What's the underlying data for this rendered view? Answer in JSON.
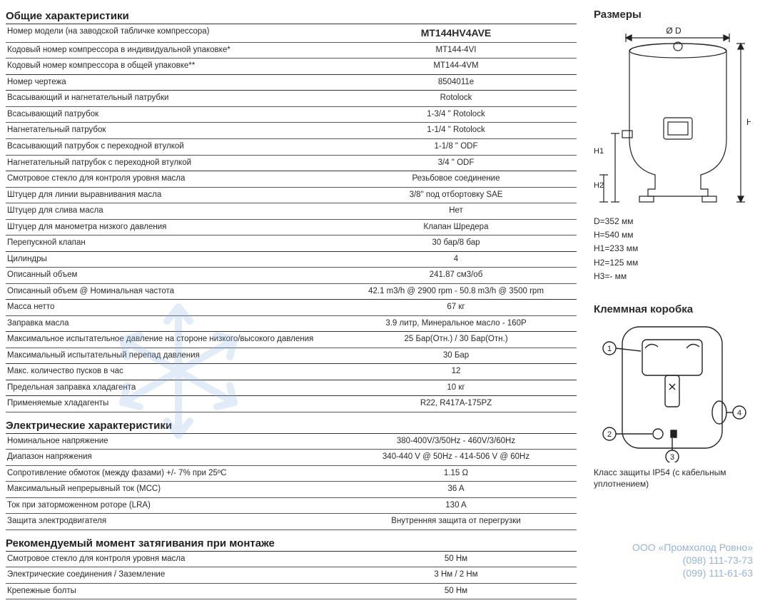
{
  "sections": {
    "general": {
      "title": "Общие характеристики",
      "rows": [
        {
          "label": "Номер модели (на заводской табличке компрессора)",
          "value": "MT144HV4AVE",
          "bold": true,
          "group": true
        },
        {
          "label": "Кодовый номер компрессора в индивидуальной упаковке*",
          "value": "MT144-4VI"
        },
        {
          "label": "Кодовый номер компрессора в общей упаковке**",
          "value": "MT144-4VM"
        },
        {
          "label": "Номер чертежа",
          "value": "8504011e",
          "group": true
        },
        {
          "label": "Всасывающий и нагнетательный патрубки",
          "value": "Rotolock",
          "group": true
        },
        {
          "label": "Всасывающий патрубок",
          "value": "1-3/4 \" Rotolock"
        },
        {
          "label": "Нагнетательный патрубок",
          "value": "1-1/4 \" Rotolock"
        },
        {
          "label": "Всасывающий патрубок с переходной втулкой",
          "value": "1-1/8 \" ODF"
        },
        {
          "label": "Нагнетательный патрубок с переходной втулкой",
          "value": "3/4 \" ODF"
        },
        {
          "label": "Смотровое стекло для контроля уровня масла",
          "value": "Резьбовое соединение",
          "group": true
        },
        {
          "label": "Штуцер для линии выравнивания масла",
          "value": "3/8\" под отбортовку SAE"
        },
        {
          "label": "Штуцер для слива масла",
          "value": "Нет"
        },
        {
          "label": "Штуцер для манометра низкого давления",
          "value": "Клапан Шредера"
        },
        {
          "label": "Перепускной клапан",
          "value": "30 бар/8 бар"
        },
        {
          "label": "Цилиндры",
          "value": "4",
          "group": true
        },
        {
          "label": "Описанный объем",
          "value": "241.87 см3/об"
        },
        {
          "label": "Описанный объем @ Номинальная частота",
          "value": "42.1 m3/h @ 2900 rpm - 50.8 m3/h @ 3500 rpm"
        },
        {
          "label": "Масса нетто",
          "value": "67 кг",
          "group": true
        },
        {
          "label": "Заправка масла",
          "value": "3.9 литр, Минеральное масло - 160P"
        },
        {
          "label": "Максимальное испытательное давление на стороне низкого/высокого давления",
          "value": "25 Бар(Отн.) / 30 Бар(Отн.)",
          "group": true
        },
        {
          "label": "Максимальный испытательный перепад давления",
          "value": "30 Бар"
        },
        {
          "label": "Макс. количество пусков в час",
          "value": "12",
          "group": true
        },
        {
          "label": "Предельная заправка хладагента",
          "value": "10 кг",
          "group": true
        },
        {
          "label": "Применяемые хладагенты",
          "value": "R22, R417A-175PZ",
          "group": true
        }
      ]
    },
    "electrical": {
      "title": "Электрические характеристики",
      "rows": [
        {
          "label": "Номинальное напряжение",
          "value": "380-400V/3/50Hz - 460V/3/60Hz",
          "group": true
        },
        {
          "label": "Диапазон напряжения",
          "value": "340-440 V @ 50Hz - 414-506 V @ 60Hz"
        },
        {
          "label": "Сопротивление обмоток (между фазами) +/- 7% при 25ºC",
          "value": "1.15 Ω"
        },
        {
          "label": "Максимальный непрерывный ток (MCC)",
          "value": "36 A"
        },
        {
          "label": "Ток при заторможенном роторе (LRA)",
          "value": "130 A"
        },
        {
          "label": "Защита электродвигателя",
          "value": "Внутренняя защита от перегрузки"
        }
      ]
    },
    "torque": {
      "title": "Рекомендуемый момент затягивания при монтаже",
      "rows": [
        {
          "label": "Смотровое стекло для контроля уровня масла",
          "value": "50 Нм",
          "group": true
        },
        {
          "label": "Электрические соединения / Заземление",
          "value": "3 Нм / 2 Нм"
        },
        {
          "label": "Крепежные болты",
          "value": "50 Нм"
        }
      ]
    }
  },
  "dimensions": {
    "title": "Размеры",
    "diagram_label_D": "Ø D",
    "diagram_label_H": "H",
    "diagram_label_H1": "H1",
    "diagram_label_H2": "H2",
    "values": [
      "D=352 мм",
      "H=540 мм",
      "H1=233 мм",
      "H2=125 мм",
      "H3=- мм"
    ]
  },
  "terminal": {
    "title": "Клеммная коробка",
    "callouts": [
      "1",
      "2",
      "3",
      "4"
    ],
    "caption": "Класс защиты IP54 (с кабельным уплотнением)"
  },
  "watermark": {
    "company": "ООО «Промхолод Ровно»",
    "phone1": "(098) 111-73-73",
    "phone2": "(099) 111-61-63"
  },
  "colors": {
    "text": "#2a2a2a",
    "rule": "#555555",
    "watermark_blue": "#3c76c4",
    "snowflake": "#8eb8e6"
  }
}
